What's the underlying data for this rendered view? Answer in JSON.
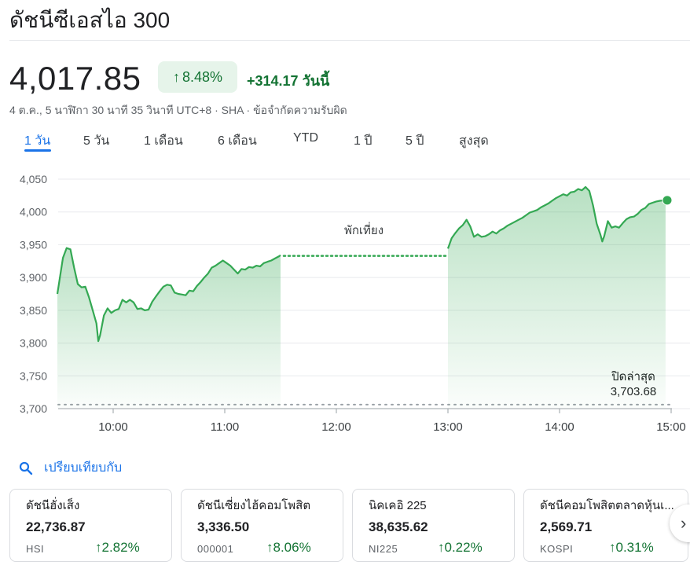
{
  "header": {
    "title": "ดัชนีซีเอสไอ 300",
    "price": "4,017.85",
    "change_pct": "8.48%",
    "change_abs": "+314.17",
    "change_period": "วันนี้",
    "meta": "4 ต.ค., 5 นาฬิกา 30 นาที 35 วินาที UTC+8 · SHA · ข้อจำกัดความรับผิด"
  },
  "tabs": [
    {
      "label": "1 วัน",
      "active": true
    },
    {
      "label": "5 วัน"
    },
    {
      "label": "1 เดือน"
    },
    {
      "label": "6 เดือน"
    },
    {
      "label": "YTD"
    },
    {
      "label": "1 ปี"
    },
    {
      "label": "5 ปี"
    },
    {
      "label": "สูงสุด"
    }
  ],
  "colors": {
    "up": "#137333",
    "line": "#34a853",
    "accent": "#1a73e8",
    "grid": "#e8eaed"
  },
  "chart_data": {
    "type": "line",
    "x_unit": "time of day",
    "xticks": [
      "10:00",
      "11:00",
      "12:00",
      "13:00",
      "14:00",
      "15:00"
    ],
    "ylim": [
      3700,
      4050
    ],
    "yticks": [
      "3,700",
      "3,750",
      "3,800",
      "3,850",
      "3,900",
      "3,950",
      "4,000",
      "4,050"
    ],
    "grid": true,
    "break_label": "พักเที่ยง",
    "previous_close_label": "ปิดล่าสุด",
    "previous_close_value": "3,703.68",
    "previous_close": 3703.68,
    "lunch_level": 3933,
    "morning": [
      [
        "09:30",
        3875
      ],
      [
        "09:33",
        3930
      ],
      [
        "09:35",
        3945
      ],
      [
        "09:37",
        3943
      ],
      [
        "09:39",
        3915
      ],
      [
        "09:41",
        3890
      ],
      [
        "09:43",
        3885
      ],
      [
        "09:45",
        3886
      ],
      [
        "09:47",
        3870
      ],
      [
        "09:49",
        3850
      ],
      [
        "09:51",
        3830
      ],
      [
        "09:52",
        3803
      ],
      [
        "09:53",
        3812
      ],
      [
        "09:55",
        3842
      ],
      [
        "09:57",
        3853
      ],
      [
        "09:59",
        3846
      ],
      [
        "10:01",
        3850
      ],
      [
        "10:03",
        3852
      ],
      [
        "10:05",
        3866
      ],
      [
        "10:07",
        3862
      ],
      [
        "10:09",
        3866
      ],
      [
        "10:11",
        3862
      ],
      [
        "10:13",
        3852
      ],
      [
        "10:15",
        3853
      ],
      [
        "10:17",
        3850
      ],
      [
        "10:19",
        3851
      ],
      [
        "10:21",
        3863
      ],
      [
        "10:23",
        3871
      ],
      [
        "10:25",
        3879
      ],
      [
        "10:27",
        3886
      ],
      [
        "10:29",
        3889
      ],
      [
        "10:31",
        3888
      ],
      [
        "10:33",
        3877
      ],
      [
        "10:35",
        3875
      ],
      [
        "10:37",
        3874
      ],
      [
        "10:39",
        3873
      ],
      [
        "10:41",
        3880
      ],
      [
        "10:43",
        3879
      ],
      [
        "10:45",
        3887
      ],
      [
        "10:47",
        3893
      ],
      [
        "10:49",
        3900
      ],
      [
        "10:51",
        3906
      ],
      [
        "10:53",
        3915
      ],
      [
        "10:55",
        3918
      ],
      [
        "10:57",
        3922
      ],
      [
        "10:59",
        3926
      ],
      [
        "11:01",
        3922
      ],
      [
        "11:03",
        3918
      ],
      [
        "11:05",
        3912
      ],
      [
        "11:07",
        3906
      ],
      [
        "11:09",
        3913
      ],
      [
        "11:11",
        3912
      ],
      [
        "11:13",
        3916
      ],
      [
        "11:15",
        3915
      ],
      [
        "11:17",
        3918
      ],
      [
        "11:19",
        3917
      ],
      [
        "11:21",
        3922
      ],
      [
        "11:23",
        3924
      ],
      [
        "11:25",
        3926
      ],
      [
        "11:27",
        3929
      ],
      [
        "11:29",
        3932
      ],
      [
        "11:30",
        3934
      ]
    ],
    "afternoon": [
      [
        "13:00",
        3944
      ],
      [
        "13:02",
        3960
      ],
      [
        "13:04",
        3968
      ],
      [
        "13:06",
        3975
      ],
      [
        "13:08",
        3980
      ],
      [
        "13:10",
        3988
      ],
      [
        "13:12",
        3978
      ],
      [
        "13:14",
        3962
      ],
      [
        "13:16",
        3966
      ],
      [
        "13:18",
        3962
      ],
      [
        "13:20",
        3963
      ],
      [
        "13:22",
        3966
      ],
      [
        "13:24",
        3970
      ],
      [
        "13:26",
        3967
      ],
      [
        "13:28",
        3972
      ],
      [
        "13:30",
        3975
      ],
      [
        "13:32",
        3979
      ],
      [
        "13:34",
        3982
      ],
      [
        "13:36",
        3985
      ],
      [
        "13:38",
        3988
      ],
      [
        "13:40",
        3991
      ],
      [
        "13:42",
        3995
      ],
      [
        "13:44",
        3999
      ],
      [
        "13:46",
        4001
      ],
      [
        "13:48",
        4003
      ],
      [
        "13:50",
        4007
      ],
      [
        "13:52",
        4010
      ],
      [
        "13:54",
        4013
      ],
      [
        "13:56",
        4017
      ],
      [
        "13:58",
        4021
      ],
      [
        "14:00",
        4024
      ],
      [
        "14:02",
        4027
      ],
      [
        "14:04",
        4025
      ],
      [
        "14:06",
        4030
      ],
      [
        "14:08",
        4031
      ],
      [
        "14:10",
        4035
      ],
      [
        "14:12",
        4033
      ],
      [
        "14:14",
        4038
      ],
      [
        "14:16",
        4032
      ],
      [
        "14:18",
        4010
      ],
      [
        "14:20",
        3982
      ],
      [
        "14:22",
        3965
      ],
      [
        "14:23",
        3955
      ],
      [
        "14:24",
        3963
      ],
      [
        "14:26",
        3986
      ],
      [
        "14:28",
        3976
      ],
      [
        "14:30",
        3978
      ],
      [
        "14:32",
        3976
      ],
      [
        "14:34",
        3983
      ],
      [
        "14:36",
        3989
      ],
      [
        "14:38",
        3992
      ],
      [
        "14:40",
        3993
      ],
      [
        "14:42",
        3997
      ],
      [
        "14:44",
        4003
      ],
      [
        "14:46",
        4006
      ],
      [
        "14:48",
        4012
      ],
      [
        "14:50",
        4014
      ],
      [
        "14:52",
        4016
      ],
      [
        "14:54",
        4017
      ],
      [
        "14:57",
        4017.85
      ]
    ]
  },
  "compare": {
    "label": "เปรียบเทียบกับ"
  },
  "related": [
    {
      "name": "ดัชนีฮั่งเส็ง",
      "price": "22,736.87",
      "symbol": "HSI",
      "change": "2.82%"
    },
    {
      "name": "ดัชนีเซี่ยงไฮ้คอมโพสิต",
      "price": "3,336.50",
      "symbol": "000001",
      "change": "8.06%"
    },
    {
      "name": "นิคเคอิ 225",
      "price": "38,635.62",
      "symbol": "NI225",
      "change": "0.22%"
    },
    {
      "name": "ดัชนีคอมโพสิตตลาดหุ้นเ...",
      "price": "2,569.71",
      "symbol": "KOSPI",
      "change": "0.31%"
    }
  ]
}
